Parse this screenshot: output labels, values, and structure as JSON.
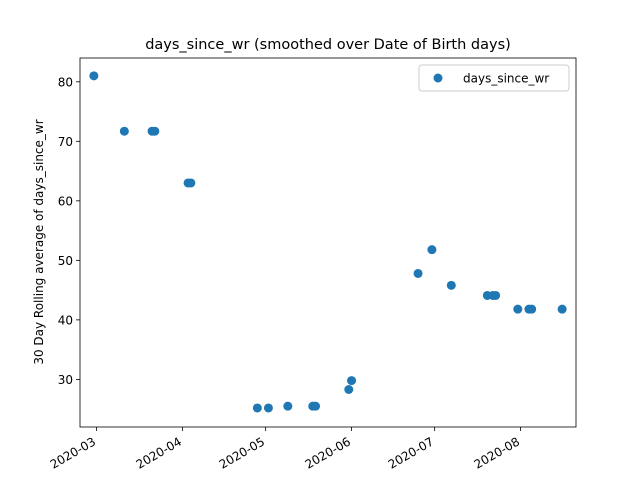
{
  "chart_data": {
    "type": "scatter",
    "title": "days_since_wr (smoothed over Date of Birth days)",
    "xlabel": "",
    "ylabel": "30 Day Rolling average of days_since_wr",
    "x_ticks": [
      "2020-03",
      "2020-04",
      "2020-05",
      "2020-06",
      "2020-07",
      "2020-08"
    ],
    "y_ticks": [
      30,
      40,
      50,
      60,
      70,
      80
    ],
    "xlim": [
      "2020-02-24",
      "2020-08-21"
    ],
    "ylim": [
      22,
      84
    ],
    "legend_position": "top-right",
    "grid": false,
    "series": [
      {
        "name": "days_since_wr",
        "color": "#1f77b4",
        "points": [
          {
            "x": "2020-02-29",
            "y": 81.0
          },
          {
            "x": "2020-03-11",
            "y": 71.7
          },
          {
            "x": "2020-03-21",
            "y": 71.7
          },
          {
            "x": "2020-03-22",
            "y": 71.7
          },
          {
            "x": "2020-04-03",
            "y": 63.0
          },
          {
            "x": "2020-04-04",
            "y": 63.0
          },
          {
            "x": "2020-04-28",
            "y": 25.2
          },
          {
            "x": "2020-05-02",
            "y": 25.2
          },
          {
            "x": "2020-05-09",
            "y": 25.5
          },
          {
            "x": "2020-05-18",
            "y": 25.5
          },
          {
            "x": "2020-05-19",
            "y": 25.5
          },
          {
            "x": "2020-05-31",
            "y": 28.3
          },
          {
            "x": "2020-06-01",
            "y": 29.8
          },
          {
            "x": "2020-06-25",
            "y": 47.8
          },
          {
            "x": "2020-06-30",
            "y": 51.8
          },
          {
            "x": "2020-07-07",
            "y": 45.8
          },
          {
            "x": "2020-07-20",
            "y": 44.1
          },
          {
            "x": "2020-07-22",
            "y": 44.1
          },
          {
            "x": "2020-07-23",
            "y": 44.1
          },
          {
            "x": "2020-07-31",
            "y": 41.8
          },
          {
            "x": "2020-08-04",
            "y": 41.8
          },
          {
            "x": "2020-08-05",
            "y": 41.8
          },
          {
            "x": "2020-08-16",
            "y": 41.8
          }
        ]
      }
    ]
  }
}
